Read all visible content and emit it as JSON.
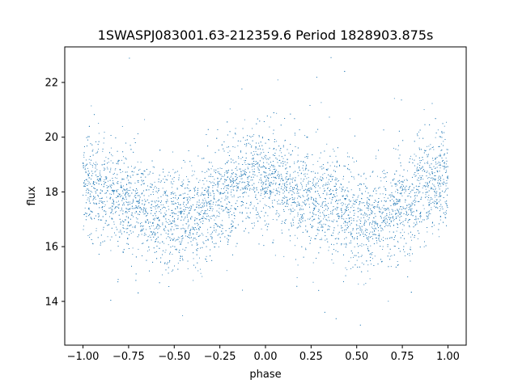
{
  "chart_data": {
    "type": "scatter",
    "title": "1SWASPJ083001.63-212359.6 Period 1828903.875s",
    "xlabel": "phase",
    "ylabel": "flux",
    "xlim": [
      -1.1,
      1.1
    ],
    "ylim": [
      12.4,
      23.3
    ],
    "xticks": [
      -1.0,
      -0.75,
      -0.5,
      -0.25,
      0.0,
      0.25,
      0.5,
      0.75,
      1.0
    ],
    "xtick_labels": [
      "−1.00",
      "−0.75",
      "−0.50",
      "−0.25",
      "0.00",
      "0.25",
      "0.50",
      "0.75",
      "1.00"
    ],
    "yticks": [
      14,
      16,
      18,
      20,
      22
    ],
    "ytick_labels": [
      "14",
      "16",
      "18",
      "20",
      "22"
    ],
    "grid": false,
    "legend": "none",
    "color": "#1f77b4",
    "series": [
      {
        "x": [
          -1.0,
          -0.95,
          -0.9,
          -0.85,
          -0.8,
          -0.75,
          -0.7,
          -0.65,
          -0.6,
          -0.55,
          -0.5,
          -0.45,
          -0.4,
          -0.35,
          -0.3,
          -0.25,
          -0.2,
          -0.15,
          -0.1,
          -0.05,
          0.0,
          0.05,
          0.1,
          0.15,
          0.2,
          0.25,
          0.3,
          0.35,
          0.4,
          0.45,
          0.5,
          0.55,
          0.6,
          0.65,
          0.7,
          0.75,
          0.8,
          0.85,
          0.9,
          0.95,
          1.0
        ],
        "y_median": [
          18.4,
          18.2,
          18.0,
          17.8,
          17.7,
          17.7,
          17.6,
          17.4,
          17.3,
          17.1,
          17.0,
          17.0,
          17.1,
          17.2,
          17.5,
          17.8,
          18.0,
          18.2,
          18.4,
          18.6,
          18.6,
          18.4,
          18.2,
          18.0,
          17.8,
          17.7,
          17.7,
          17.6,
          17.4,
          17.3,
          17.1,
          17.0,
          17.0,
          17.1,
          17.2,
          17.5,
          17.8,
          18.0,
          18.2,
          18.4,
          18.4
        ],
        "y_spread": 0.9,
        "n_points": 7000
      }
    ]
  }
}
